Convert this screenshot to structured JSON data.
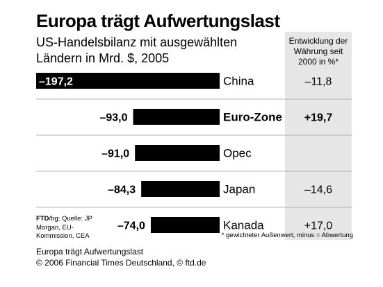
{
  "header": {
    "title": "Europa trägt Aufwertungslast",
    "subtitle": "US-Handelsbilanz mit ausgewählten Ländern in Mrd. $, 2005"
  },
  "currency_header": "Entwicklung der Währung seit 2000 in %*",
  "chart_data": {
    "type": "bar",
    "title": "Europa trägt Aufwertungslast",
    "subtitle": "US-Handelsbilanz mit ausgewählten Ländern in Mrd. $, 2005",
    "categories": [
      "China",
      "Euro-Zone",
      "Opec",
      "Japan",
      "Kanada"
    ],
    "values": [
      -197.2,
      -93.0,
      -91.0,
      -84.3,
      -74.0
    ],
    "value_labels": [
      "–197,2",
      "–93,0",
      "–91,0",
      "–84,3",
      "–74,0"
    ],
    "currency_change": [
      "–11,8",
      "+19,7",
      "",
      "–14,6",
      "+17,0"
    ],
    "highlight_category": "Euro-Zone",
    "xlim": [
      -197.2,
      0
    ],
    "grid": false,
    "legend": "none",
    "colors": {
      "bar": "#000000",
      "panel": "#e6e6e6",
      "divider": "#b3b3b3"
    }
  },
  "source": {
    "ftd": "FTD",
    "rest": "/bg; Quelle: JP Morgan, EU-Kommission, CEA"
  },
  "footnote": "* gewichteter Außenwert, minus = Abwertung",
  "caption": "Europa trägt Aufwertungslast",
  "copyright": "© 2006 Financial Times Deutschland, © ftd.de"
}
